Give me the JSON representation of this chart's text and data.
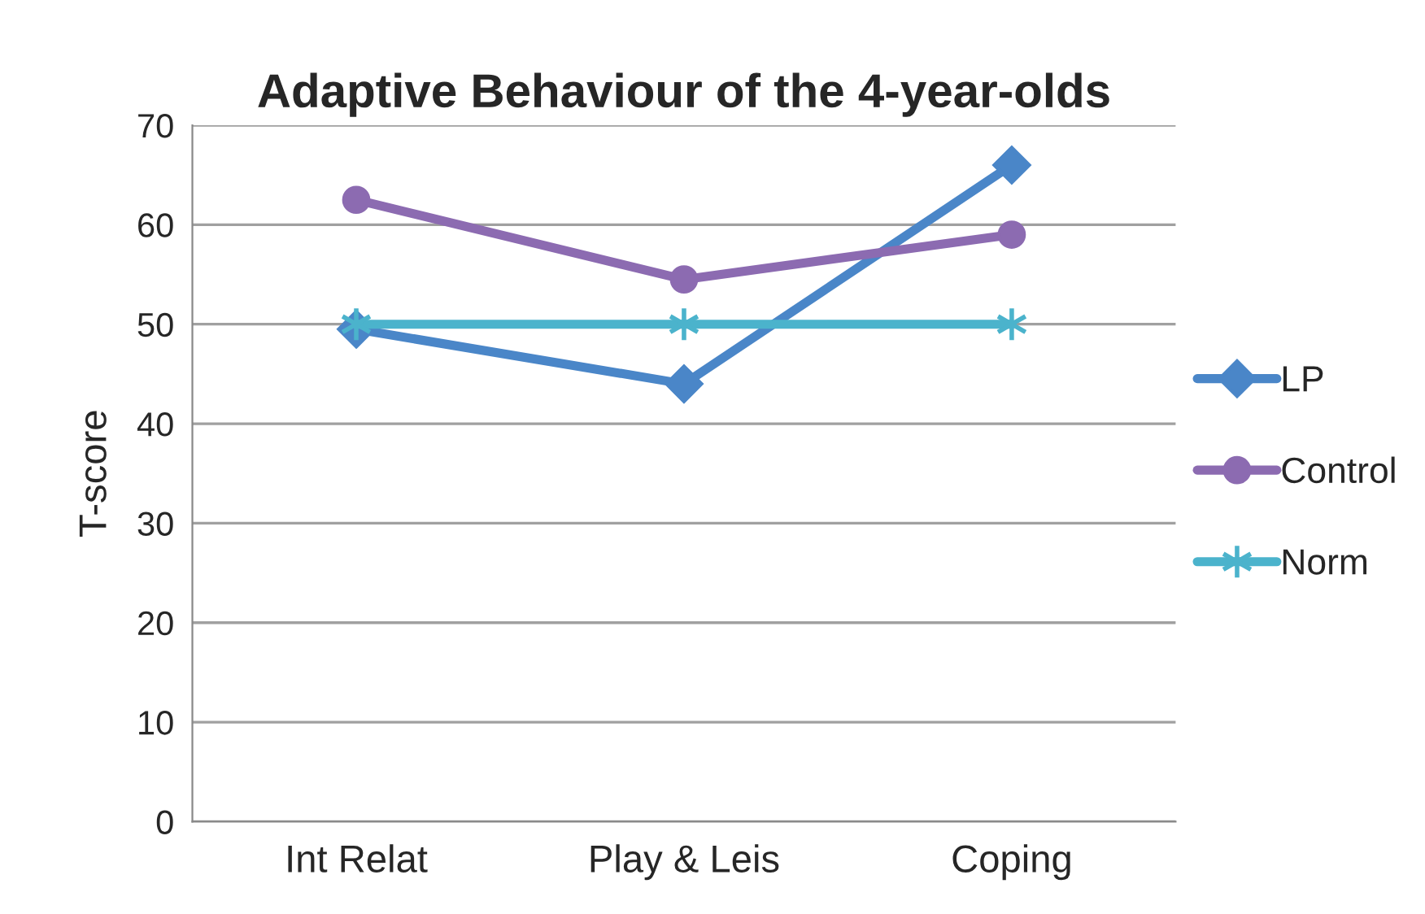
{
  "chart_data": {
    "type": "line",
    "title": "Adaptive Behaviour of the 4-year-olds",
    "ylabel": "T-score",
    "categories": [
      "Int Relat",
      "Play & Leis",
      "Coping"
    ],
    "series": [
      {
        "name": "LP",
        "color": "#4a86c8",
        "marker": "diamond",
        "values": [
          49.5,
          44,
          66
        ]
      },
      {
        "name": "Control",
        "color": "#8c6bb1",
        "marker": "circle",
        "values": [
          62.5,
          54.5,
          59
        ]
      },
      {
        "name": "Norm",
        "color": "#4bb3cc",
        "marker": "cross",
        "values": [
          50,
          50,
          50
        ]
      }
    ],
    "ylim": [
      0,
      70
    ],
    "yticks": [
      0,
      10,
      20,
      30,
      40,
      50,
      60,
      70
    ],
    "grid": "y",
    "legend": "right",
    "line_style": "solid"
  }
}
